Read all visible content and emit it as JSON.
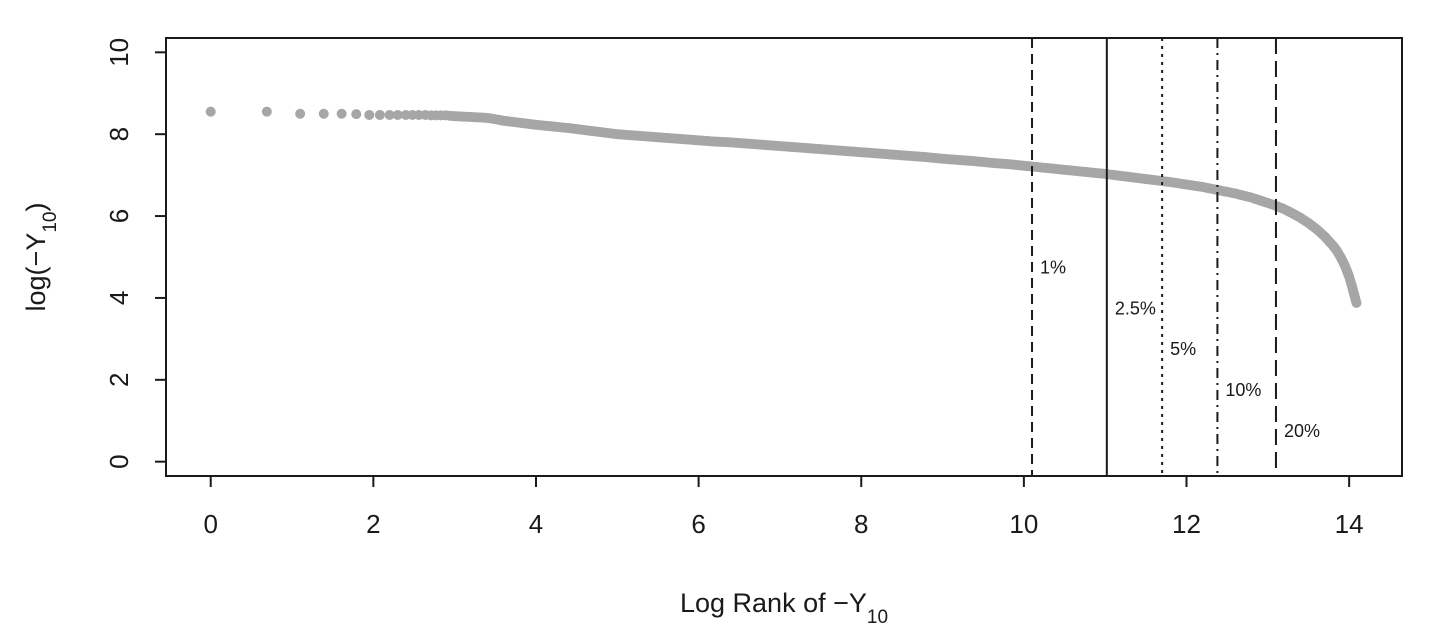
{
  "chart_data": {
    "type": "scatter",
    "title": "",
    "xlabel": {
      "prefix": "Log Rank of −Y",
      "subscript": "10",
      "suffix": ""
    },
    "ylabel": {
      "prefix": "log(−Y",
      "subscript": "10",
      "suffix": ")"
    },
    "xlim": [
      -0.55,
      14.65
    ],
    "ylim": [
      -0.35,
      10.35
    ],
    "x_ticks": [
      0,
      2,
      4,
      6,
      8,
      10,
      12,
      14
    ],
    "x_tick_labels": [
      "0",
      "2",
      "4",
      "6",
      "8",
      "10",
      "12",
      "14"
    ],
    "y_ticks": [
      0,
      2,
      4,
      6,
      8,
      10
    ],
    "y_tick_labels": [
      "0",
      "2",
      "4",
      "6",
      "8",
      "10"
    ],
    "grid": false,
    "point_color": "#a6a6a6",
    "series": [
      {
        "points": [
          [
            0,
            8.55
          ],
          [
            0.69,
            8.55
          ],
          [
            1.1,
            8.5
          ],
          [
            1.39,
            8.5
          ],
          [
            1.61,
            8.5
          ],
          [
            1.79,
            8.49
          ],
          [
            1.95,
            8.47
          ],
          [
            2.08,
            8.47
          ],
          [
            2.2,
            8.47
          ],
          [
            2.3,
            8.47
          ],
          [
            2.4,
            8.47
          ],
          [
            2.48,
            8.47
          ],
          [
            2.56,
            8.47
          ],
          [
            2.64,
            8.47
          ],
          [
            2.71,
            8.46
          ],
          [
            2.77,
            8.46
          ],
          [
            2.83,
            8.46
          ],
          [
            2.89,
            8.46
          ],
          [
            2.94,
            8.45
          ],
          [
            3.0,
            8.44
          ],
          [
            3.2,
            8.42
          ],
          [
            3.4,
            8.4
          ],
          [
            3.6,
            8.33
          ],
          [
            3.8,
            8.28
          ],
          [
            4.0,
            8.23
          ],
          [
            4.2,
            8.19
          ],
          [
            4.4,
            8.15
          ],
          [
            4.6,
            8.1
          ],
          [
            4.8,
            8.05
          ],
          [
            5.0,
            8.0
          ],
          [
            5.2,
            7.97
          ],
          [
            5.4,
            7.94
          ],
          [
            5.6,
            7.91
          ],
          [
            5.8,
            7.88
          ],
          [
            6.0,
            7.85
          ],
          [
            6.2,
            7.82
          ],
          [
            6.4,
            7.8
          ],
          [
            6.6,
            7.77
          ],
          [
            6.8,
            7.74
          ],
          [
            7.0,
            7.71
          ],
          [
            7.2,
            7.68
          ],
          [
            7.4,
            7.65
          ],
          [
            7.6,
            7.62
          ],
          [
            7.8,
            7.59
          ],
          [
            8.0,
            7.56
          ],
          [
            8.2,
            7.53
          ],
          [
            8.4,
            7.5
          ],
          [
            8.6,
            7.47
          ],
          [
            8.8,
            7.44
          ],
          [
            9.0,
            7.4
          ],
          [
            9.2,
            7.37
          ],
          [
            9.4,
            7.34
          ],
          [
            9.6,
            7.3
          ],
          [
            9.8,
            7.27
          ],
          [
            10.0,
            7.23
          ],
          [
            10.2,
            7.19
          ],
          [
            10.4,
            7.15
          ],
          [
            10.6,
            7.11
          ],
          [
            10.8,
            7.07
          ],
          [
            11.0,
            7.03
          ],
          [
            11.2,
            6.98
          ],
          [
            11.4,
            6.93
          ],
          [
            11.6,
            6.88
          ],
          [
            11.8,
            6.83
          ],
          [
            12.0,
            6.77
          ],
          [
            12.2,
            6.71
          ],
          [
            12.4,
            6.63
          ],
          [
            12.6,
            6.55
          ],
          [
            12.8,
            6.45
          ],
          [
            13.0,
            6.32
          ],
          [
            13.1,
            6.25
          ],
          [
            13.2,
            6.17
          ],
          [
            13.3,
            6.07
          ],
          [
            13.4,
            5.96
          ],
          [
            13.5,
            5.83
          ],
          [
            13.6,
            5.68
          ],
          [
            13.7,
            5.5
          ],
          [
            13.8,
            5.28
          ],
          [
            13.85,
            5.15
          ],
          [
            13.9,
            4.98
          ],
          [
            13.95,
            4.78
          ],
          [
            14.0,
            4.52
          ],
          [
            14.03,
            4.32
          ],
          [
            14.06,
            4.1
          ],
          [
            14.08,
            3.95
          ],
          [
            14.09,
            3.88
          ]
        ]
      }
    ],
    "vertical_lines": [
      {
        "x": 10.1,
        "label": "1%",
        "style": "dashed",
        "label_y": 4.6
      },
      {
        "x": 11.02,
        "label": "2.5%",
        "style": "solid",
        "label_y": 3.6
      },
      {
        "x": 11.7,
        "label": "5%",
        "style": "dotted",
        "label_y": 2.6
      },
      {
        "x": 12.38,
        "label": "10%",
        "style": "dashdot",
        "label_y": 1.6
      },
      {
        "x": 13.1,
        "label": "20%",
        "style": "longdash",
        "label_y": 0.6
      }
    ]
  }
}
